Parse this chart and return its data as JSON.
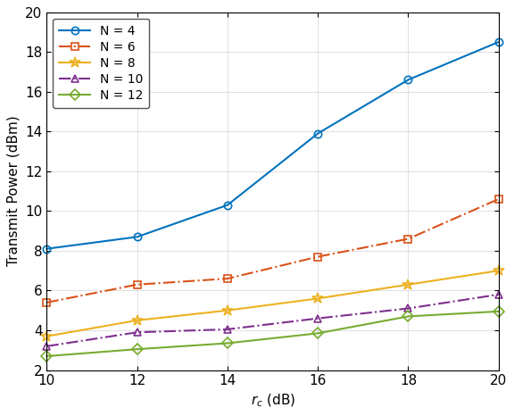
{
  "x": [
    10,
    12,
    14,
    16,
    18,
    20
  ],
  "series": [
    {
      "label": "N = 4",
      "y": [
        8.1,
        8.7,
        10.3,
        13.9,
        16.6,
        18.5
      ],
      "color": "#0072BD",
      "linestyle": "-",
      "marker": "o",
      "linewidth": 1.5
    },
    {
      "label": "N = 6",
      "y": [
        5.4,
        6.3,
        6.6,
        7.7,
        8.6,
        10.6
      ],
      "color": "#D95319",
      "linestyle": "-.",
      "marker": "s",
      "linewidth": 1.5
    },
    {
      "label": "N = 8",
      "y": [
        3.7,
        4.5,
        5.0,
        5.6,
        6.3,
        7.0
      ],
      "color": "#EDB120",
      "linestyle": "-",
      "marker": "*",
      "linewidth": 1.5
    },
    {
      "label": "N = 10",
      "y": [
        3.2,
        3.9,
        4.05,
        4.6,
        5.1,
        5.8
      ],
      "color": "#7E2F8E",
      "linestyle": "-.",
      "marker": "^",
      "linewidth": 1.5
    },
    {
      "label": "N = 12",
      "y": [
        2.7,
        3.05,
        3.35,
        3.85,
        4.7,
        4.95
      ],
      "color": "#77AC30",
      "linestyle": "-",
      "marker": "D",
      "linewidth": 1.5
    }
  ],
  "xlabel": "$r_c$ (dB)",
  "ylabel": "Transmit Power (dBm)",
  "xlim": [
    10,
    20
  ],
  "ylim": [
    2,
    20
  ],
  "xticks": [
    10,
    12,
    14,
    16,
    18,
    20
  ],
  "yticks": [
    2,
    4,
    6,
    8,
    10,
    12,
    14,
    16,
    18,
    20
  ],
  "grid": true,
  "legend_loc": "upper left",
  "markersize": 6,
  "star_markersize": 9,
  "figure_width": 5.76,
  "figure_height": 4.66,
  "dpi": 100
}
